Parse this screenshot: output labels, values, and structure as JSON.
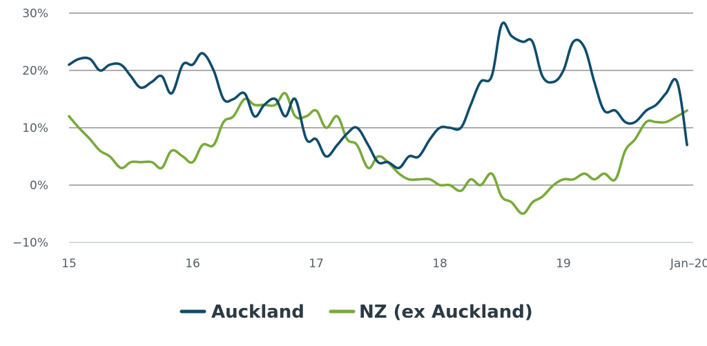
{
  "chart_data": {
    "type": "line",
    "title": "",
    "xlabel": "",
    "ylabel": "",
    "x_tick_labels": [
      "15",
      "16",
      "17",
      "18",
      "19",
      "Jan–20"
    ],
    "x_tick_values": [
      2015.0,
      2016.0,
      2017.0,
      2018.0,
      2019.0,
      2020.0
    ],
    "y_tick_labels": [
      "30%",
      "20%",
      "10%",
      "0%",
      "−10%"
    ],
    "y_tick_values": [
      30,
      20,
      10,
      0,
      -10
    ],
    "xlim": [
      2015.0,
      2020.05
    ],
    "ylim": [
      -10,
      30
    ],
    "grid": "horizontal",
    "legend_position": "bottom-center",
    "series": [
      {
        "name": "Auckland",
        "color": "#0f4c6b",
        "x": [
          2015.0,
          2015.08,
          2015.17,
          2015.25,
          2015.33,
          2015.42,
          2015.5,
          2015.58,
          2015.67,
          2015.75,
          2015.83,
          2015.92,
          2016.0,
          2016.08,
          2016.17,
          2016.25,
          2016.33,
          2016.42,
          2016.5,
          2016.58,
          2016.67,
          2016.75,
          2016.83,
          2016.92,
          2017.0,
          2017.08,
          2017.17,
          2017.25,
          2017.33,
          2017.42,
          2017.5,
          2017.58,
          2017.67,
          2017.75,
          2017.83,
          2017.92,
          2018.0,
          2018.08,
          2018.17,
          2018.25,
          2018.33,
          2018.42,
          2018.5,
          2018.58,
          2018.67,
          2018.75,
          2018.83,
          2018.92,
          2019.0,
          2019.08,
          2019.17,
          2019.25,
          2019.33,
          2019.42,
          2019.5,
          2019.58,
          2019.67,
          2019.75,
          2019.83,
          2019.92,
          2020.0
        ],
        "values": [
          21,
          22,
          22,
          20,
          21,
          21,
          19,
          17,
          18,
          19,
          16,
          21,
          21,
          23,
          20,
          15,
          15,
          16,
          12,
          14,
          15,
          12,
          15,
          8,
          8,
          5,
          7,
          9,
          10,
          7,
          4,
          4,
          3,
          5,
          5,
          8,
          10,
          10,
          10,
          14,
          18,
          19,
          28,
          26,
          25,
          25,
          19,
          18,
          20,
          25,
          24,
          18,
          13,
          13,
          11,
          11,
          13,
          14,
          16,
          18,
          7
        ]
      },
      {
        "name": "NZ (ex Auckland)",
        "color": "#79aa3a",
        "x": [
          2015.0,
          2015.08,
          2015.17,
          2015.25,
          2015.33,
          2015.42,
          2015.5,
          2015.58,
          2015.67,
          2015.75,
          2015.83,
          2015.92,
          2016.0,
          2016.08,
          2016.17,
          2016.25,
          2016.33,
          2016.42,
          2016.5,
          2016.58,
          2016.67,
          2016.75,
          2016.83,
          2016.92,
          2017.0,
          2017.08,
          2017.17,
          2017.25,
          2017.33,
          2017.42,
          2017.5,
          2017.58,
          2017.67,
          2017.75,
          2017.83,
          2017.92,
          2018.0,
          2018.08,
          2018.17,
          2018.25,
          2018.33,
          2018.42,
          2018.5,
          2018.58,
          2018.67,
          2018.75,
          2018.83,
          2018.92,
          2019.0,
          2019.08,
          2019.17,
          2019.25,
          2019.33,
          2019.42,
          2019.5,
          2019.58,
          2019.67,
          2019.75,
          2019.83,
          2019.92,
          2020.0
        ],
        "values": [
          12,
          10,
          8,
          6,
          5,
          3,
          4,
          4,
          4,
          3,
          6,
          5,
          4,
          7,
          7,
          11,
          12,
          15,
          14,
          14,
          14,
          16,
          12,
          12,
          13,
          10,
          12,
          8,
          7,
          3,
          5,
          4,
          2,
          1,
          1,
          1,
          0,
          0,
          -1,
          1,
          0,
          2,
          -2,
          -3,
          -5,
          -3,
          -2,
          0,
          1,
          1,
          2,
          1,
          2,
          1,
          6,
          8,
          11,
          11,
          11,
          12,
          13
        ]
      }
    ]
  }
}
